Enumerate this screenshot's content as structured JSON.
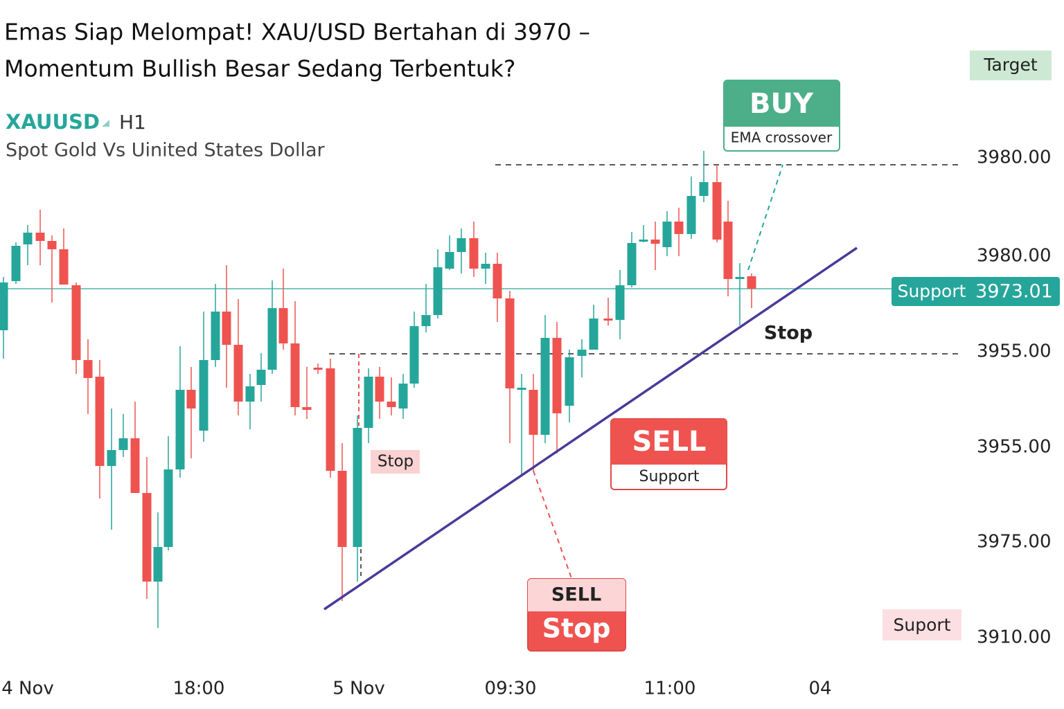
{
  "header": {
    "title_lines": [
      "Emas Siap Melompat! XAU/USD Bertahan di 3970 –",
      "Momentum Bullish Besar Sedang Terbentuk?"
    ],
    "symbol": "XAUUSD",
    "timeframe": "H1",
    "description": "Spot Gold Vs Uinited States Dollar"
  },
  "price_labels": [
    "3980.00",
    "3980.00",
    "3955.00",
    "3955.00",
    "3975.00",
    "3910.00"
  ],
  "time_labels": [
    "4 Nov",
    "18:00",
    "5 Nov",
    "09:30",
    "11:00",
    "04"
  ],
  "annotations": {
    "target": "Target",
    "buy": {
      "label": "BUY",
      "note": "EMA crossover"
    },
    "support_badge": {
      "label": "Support",
      "price": "3973.01"
    },
    "stop_right": "Stop",
    "sell": {
      "label": "SELL",
      "note": "Support"
    },
    "stop_left": "Stop",
    "sell_stop": {
      "top": "SELL",
      "bottom": "Stop"
    },
    "suport": "Suport"
  }
}
